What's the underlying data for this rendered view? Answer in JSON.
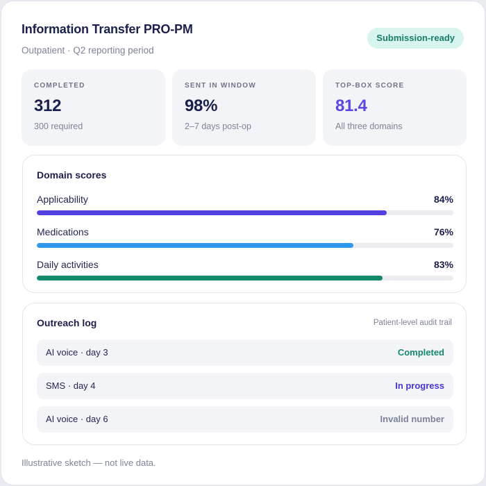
{
  "header": {
    "title": "Information Transfer PRO-PM",
    "subtitle": "Outpatient · Q2 reporting period",
    "badge": "Submission-ready"
  },
  "stats": [
    {
      "label": "COMPLETED",
      "value": "312",
      "sub": "300 required"
    },
    {
      "label": "SENT IN WINDOW",
      "value": "98%",
      "sub": "2–7 days post-op"
    },
    {
      "label": "TOP-BOX SCORE",
      "value": "81.4",
      "sub": "All three domains"
    }
  ],
  "domains": {
    "title": "Domain scores",
    "items": [
      {
        "label": "Applicability",
        "pct_text": "84%",
        "value": 84,
        "color": "#5240e0"
      },
      {
        "label": "Medications",
        "pct_text": "76%",
        "value": 76,
        "color": "#2f98ef"
      },
      {
        "label": "Daily activities",
        "pct_text": "83%",
        "value": 83,
        "color": "#138a6e"
      }
    ]
  },
  "outreach": {
    "title": "Outreach log",
    "audit_link": "Patient-level audit trail",
    "items": [
      {
        "label": "AI voice · day 3",
        "status": "Completed",
        "status_color": "#138a6e"
      },
      {
        "label": "SMS · day 4",
        "status": "In progress",
        "status_color": "#4a32d8"
      },
      {
        "label": "AI voice · day 6",
        "status": "Invalid number",
        "status_color": "#7d8397"
      }
    ]
  },
  "footer": {
    "note": "Illustrative sketch — not live data."
  },
  "colors": {
    "accent": "#5b45e3",
    "success_badge_bg": "#d8f4ee",
    "success_badge_text": "#177d67"
  }
}
